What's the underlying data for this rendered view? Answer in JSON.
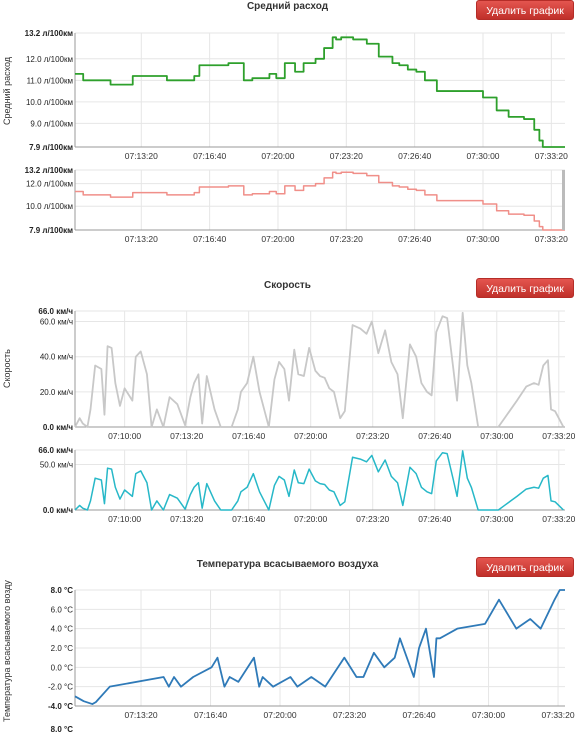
{
  "ui": {
    "delete_label": "Удалить график"
  },
  "chart_data": [
    {
      "type": "line",
      "title": "Средний расход",
      "ylabel": "Средний расход",
      "line_style": "step",
      "color": "#2ea02c",
      "nav_color": "#f08f89",
      "grid": true,
      "ylim": [
        7.9,
        13.2
      ],
      "y_ticks": [
        "13.2 л/100км",
        "12.0 л/100км",
        "11.0 л/100км",
        "10.0 л/100км",
        "9.0 л/100км",
        "7.9 л/100км"
      ],
      "y_tick_values": [
        13.2,
        12.0,
        11.0,
        10.0,
        9.0,
        7.9
      ],
      "nav_y_ticks": [
        "13.2 л/100км",
        "12.0 л/100км",
        "10.0 л/100км",
        "7.9 л/100км"
      ],
      "nav_y_tick_values": [
        13.2,
        12.0,
        10.0,
        7.9
      ],
      "x_ticks": [
        "07:13:20",
        "07:16:40",
        "07:20:00",
        "07:23:20",
        "07:26:40",
        "07:30:00",
        "07:33:20"
      ],
      "x_tick_values": [
        800,
        1000,
        1200,
        1400,
        1600,
        1800,
        2000
      ],
      "xlim": [
        606,
        2040
      ],
      "nav_xlim": [
        606,
        2040
      ],
      "x": [
        606,
        630,
        670,
        710,
        775,
        875,
        900,
        955,
        970,
        985,
        1010,
        1055,
        1100,
        1125,
        1150,
        1175,
        1195,
        1220,
        1235,
        1250,
        1275,
        1310,
        1320,
        1335,
        1360,
        1370,
        1385,
        1400,
        1420,
        1460,
        1495,
        1535,
        1555,
        1565,
        1580,
        1605,
        1630,
        1665,
        1690,
        1750,
        1800,
        1840,
        1875,
        1920,
        1950,
        1965,
        1975,
        1995,
        2015,
        2040
      ],
      "values": [
        11.3,
        11.0,
        11.0,
        10.8,
        11.2,
        11.0,
        11.0,
        11.2,
        11.7,
        11.7,
        11.7,
        11.8,
        11.0,
        11.1,
        11.1,
        11.3,
        11.1,
        11.8,
        11.8,
        11.4,
        11.8,
        12.0,
        12.0,
        12.5,
        13.0,
        12.9,
        13.0,
        13.0,
        12.9,
        12.7,
        12.1,
        11.8,
        11.7,
        11.7,
        11.5,
        11.4,
        11.0,
        10.5,
        10.5,
        10.5,
        10.2,
        9.6,
        9.3,
        9.2,
        8.7,
        8.2,
        7.9,
        7.9,
        7.9,
        7.9
      ]
    },
    {
      "type": "line",
      "title": "Скорость",
      "ylabel": "Скорость",
      "color": "#c8c8c8",
      "nav_color": "#27b8c8",
      "grid": true,
      "ylim": [
        0,
        66
      ],
      "y_ticks": [
        "66.0 км/ч",
        "60.0 км/ч",
        "40.0 км/ч",
        "20.0 км/ч",
        "0.0 км/ч"
      ],
      "y_tick_values": [
        66,
        60,
        40,
        20,
        0
      ],
      "nav_y_ticks": [
        "66.0 км/ч",
        "50.0 км/ч",
        "0.0 км/ч"
      ],
      "nav_y_tick_values": [
        66,
        50,
        0
      ],
      "x_ticks": [
        "07:10:00",
        "07:13:20",
        "07:16:40",
        "07:20:00",
        "07:23:20",
        "07:26:40",
        "07:30:00",
        "07:33:20"
      ],
      "x_tick_values": [
        600,
        800,
        1000,
        1200,
        1400,
        1600,
        1800,
        2000
      ],
      "xlim": [
        440,
        2020
      ],
      "nav_xlim": [
        440,
        2020
      ],
      "x": [
        440,
        455,
        465,
        480,
        490,
        505,
        525,
        535,
        545,
        558,
        570,
        585,
        600,
        625,
        636,
        652,
        672,
        687,
        704,
        725,
        745,
        770,
        795,
        812,
        824,
        838,
        850,
        865,
        890,
        910,
        925,
        945,
        965,
        975,
        995,
        1015,
        1035,
        1050,
        1065,
        1083,
        1098,
        1115,
        1130,
        1147,
        1160,
        1178,
        1195,
        1215,
        1230,
        1245,
        1260,
        1275,
        1295,
        1310,
        1335,
        1360,
        1380,
        1397,
        1418,
        1440,
        1460,
        1480,
        1497,
        1520,
        1540,
        1557,
        1575,
        1590,
        1605,
        1625,
        1640,
        1660,
        1672,
        1690,
        1705,
        1718,
        1740,
        1755,
        1765,
        1785,
        1805,
        1825,
        1845,
        1865,
        1895,
        1920,
        1935,
        1950,
        1965,
        1975,
        1988,
        2000,
        2015
      ],
      "values": [
        0,
        5,
        2,
        0,
        10,
        35,
        33,
        7,
        46,
        45,
        25,
        12,
        22,
        15,
        40,
        43,
        30,
        0,
        10,
        0,
        17,
        13,
        1,
        17,
        25,
        30,
        2,
        29,
        10,
        0,
        0,
        0,
        10,
        20,
        25,
        40,
        20,
        10,
        0,
        27,
        37,
        33,
        15,
        44,
        30,
        29,
        45,
        32,
        29,
        28,
        22,
        20,
        5,
        9,
        58,
        56,
        53,
        60,
        42,
        55,
        37,
        30,
        5,
        47,
        40,
        25,
        20,
        18,
        54,
        63,
        62,
        33,
        15,
        65,
        35,
        25,
        0,
        0,
        0,
        0,
        0,
        5,
        10,
        15,
        23,
        25,
        24,
        35,
        38,
        10,
        9,
        5,
        0
      ]
    },
    {
      "type": "line",
      "title": "Температура всасываемого воздуха",
      "ylabel": "Температура всасываемого возду",
      "color": "#2f7ab8",
      "grid": true,
      "ylim": [
        -4,
        8
      ],
      "y_ticks": [
        "8.0 °C",
        "6.0 °C",
        "4.0 °C",
        "2.0 °C",
        "0.0 °C",
        "-2.0 °C",
        "-4.0 °C"
      ],
      "y_tick_values": [
        8,
        6,
        4,
        2,
        0,
        -2,
        -4
      ],
      "x_ticks": [
        "07:13:20",
        "07:16:40",
        "07:20:00",
        "07:23:20",
        "07:26:40",
        "07:30:00",
        "07:33:20"
      ],
      "x_tick_values": [
        800,
        1000,
        1200,
        1400,
        1600,
        1800,
        2000
      ],
      "xlim": [
        610,
        2020
      ],
      "x": [
        610,
        635,
        660,
        670,
        710,
        865,
        880,
        895,
        915,
        950,
        1003,
        1020,
        1040,
        1055,
        1080,
        1125,
        1140,
        1150,
        1180,
        1230,
        1250,
        1290,
        1330,
        1385,
        1420,
        1440,
        1470,
        1500,
        1530,
        1545,
        1585,
        1590,
        1600,
        1620,
        1643,
        1650,
        1660,
        1710,
        1790,
        1830,
        1880,
        1920,
        1950,
        1990,
        2005,
        2020
      ],
      "values": [
        -3.0,
        -3.5,
        -3.8,
        -3.6,
        -2.0,
        -1.0,
        -2.0,
        -1.0,
        -2.0,
        -1.0,
        0.0,
        1.0,
        -2.0,
        -1.0,
        -1.5,
        1.0,
        -2.0,
        -1.0,
        -2.0,
        -1.0,
        -2.0,
        -1.0,
        -2.0,
        1.0,
        -1.0,
        -1.0,
        1.5,
        0.0,
        1.0,
        3.0,
        -1.0,
        0.0,
        2.0,
        4.0,
        -1.0,
        3.0,
        3.0,
        4.0,
        4.5,
        7.0,
        4.0,
        5.0,
        4.0,
        7.0,
        8.0,
        8.0
      ]
    }
  ]
}
